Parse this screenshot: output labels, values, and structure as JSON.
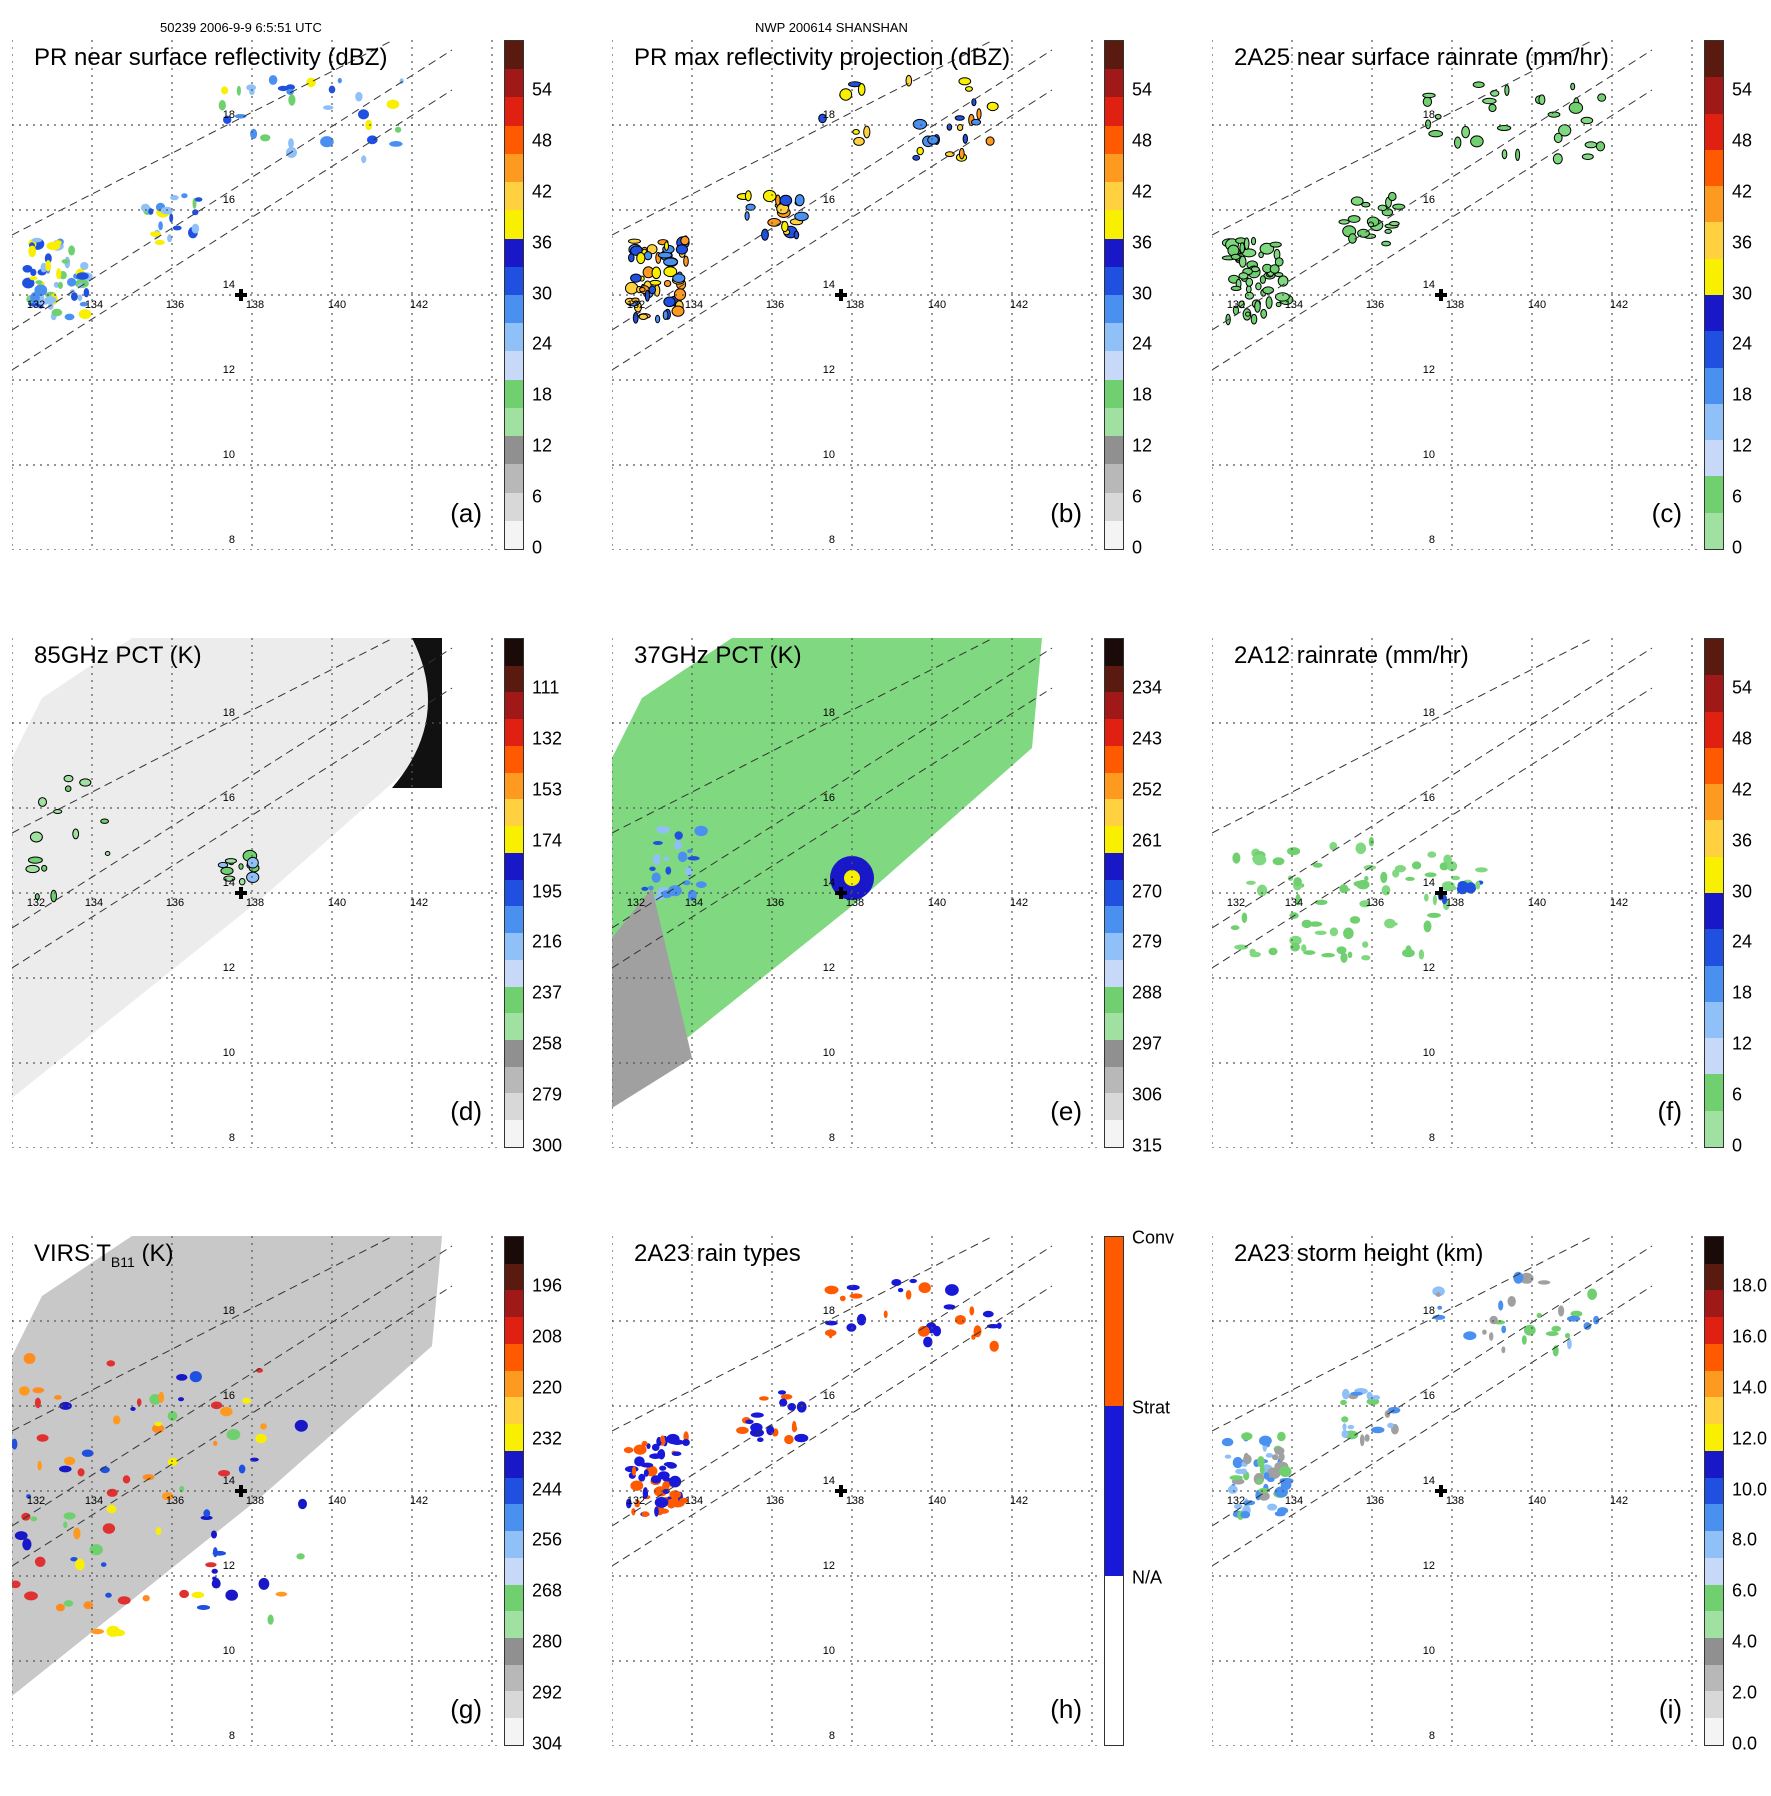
{
  "header": {
    "left": "50239 2006-9-9 6:5:51 UTC",
    "center": "NWP 200614 SHANSHAN"
  },
  "map": {
    "lon_labels": [
      "132",
      "134",
      "136",
      "138",
      "140",
      "142"
    ],
    "lat_labels": [
      "18",
      "16",
      "14",
      "12",
      "10",
      "8"
    ]
  },
  "panels": [
    {
      "id": "a",
      "title": "PR near surface reflectivity (dBZ)",
      "label": "(a)",
      "scale": "refl",
      "ticks": [
        "54",
        "48",
        "42",
        "36",
        "30",
        "24",
        "18",
        "12",
        "6",
        "0"
      ]
    },
    {
      "id": "b",
      "title": "PR max reflectivity projection (dBZ)",
      "label": "(b)",
      "scale": "refl",
      "ticks": [
        "54",
        "48",
        "42",
        "36",
        "30",
        "24",
        "18",
        "12",
        "6",
        "0"
      ]
    },
    {
      "id": "c",
      "title": "2A25 near surface rainrate (mm/hr)",
      "label": "(c)",
      "scale": "rain",
      "ticks": [
        "54",
        "48",
        "42",
        "36",
        "30",
        "24",
        "18",
        "12",
        "6",
        "0"
      ]
    },
    {
      "id": "d",
      "title": "85GHz PCT (K)",
      "label": "(d)",
      "scale": "pct",
      "ticks": [
        "111",
        "132",
        "153",
        "174",
        "195",
        "216",
        "237",
        "258",
        "279",
        "300"
      ]
    },
    {
      "id": "e",
      "title": "37GHz PCT (K)",
      "label": "(e)",
      "scale": "pct",
      "ticks": [
        "234",
        "243",
        "252",
        "261",
        "270",
        "279",
        "288",
        "297",
        "306",
        "315"
      ]
    },
    {
      "id": "f",
      "title": "2A12 rainrate (mm/hr)",
      "label": "(f)",
      "scale": "rain",
      "ticks": [
        "54",
        "48",
        "42",
        "36",
        "30",
        "24",
        "18",
        "12",
        "6",
        "0"
      ]
    },
    {
      "id": "g",
      "title": "VIRS T",
      "title_sub": "B11",
      "title_tail": " (K)",
      "label": "(g)",
      "scale": "pct",
      "ticks": [
        "196",
        "208",
        "220",
        "232",
        "244",
        "256",
        "268",
        "280",
        "292",
        "304"
      ]
    },
    {
      "id": "h",
      "title": "2A23 rain types",
      "label": "(h)",
      "scale": "types",
      "ticks": [
        "Conv",
        "Strat",
        "N/A"
      ]
    },
    {
      "id": "i",
      "title": "2A23 storm height (km)",
      "label": "(i)",
      "scale": "height",
      "ticks": [
        "18.0",
        "16.0",
        "14.0",
        "12.0",
        "10.0",
        "8.0",
        "6.0",
        "4.0",
        "2.0",
        "0.0"
      ]
    }
  ],
  "colors": {
    "refl": [
      "#5a1a10",
      "#a01818",
      "#e02010",
      "#ff5a00",
      "#ff9a20",
      "#ffd040",
      "#f8f000",
      "#1818c8",
      "#2050e0",
      "#4a90f0",
      "#90c0f8",
      "#c8d8f8",
      "#70d070",
      "#a0e0a0",
      "#909090",
      "#b8b8b8",
      "#d8d8d8",
      "#f4f4f4"
    ],
    "rain": [
      "#5a1a10",
      "#a01818",
      "#e02010",
      "#ff5a00",
      "#ff9a20",
      "#ffd040",
      "#f8f000",
      "#1818c8",
      "#2050e0",
      "#4a90f0",
      "#90c0f8",
      "#c8d8f8",
      "#70d070",
      "#a0e0a0"
    ],
    "types": [
      "#ff5a00",
      "#ff5a00",
      "#ff5a00",
      "#1818d8",
      "#1818d8",
      "#1818d8",
      "#ffffff",
      "#ffffff",
      "#ffffff"
    ],
    "green": "#80d880",
    "blue": "#2850e0",
    "orange": "#ff8c20",
    "red": "#e03030",
    "gray": "#a0a0a0"
  }
}
